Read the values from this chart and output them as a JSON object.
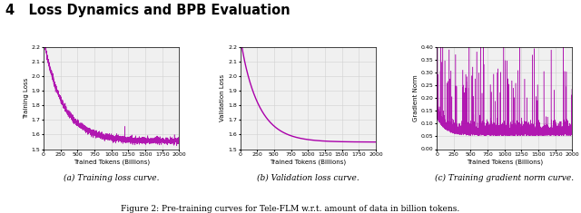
{
  "title_text": "4   Loss Dynamics and BPB Evaluation",
  "caption_bold": "Figure 2:",
  "caption_rest": " Pre-training curves for Tele-FLM w.r.t. amount of data in billion tokens.",
  "subfig_labels": [
    "(a) Training loss curve.",
    "(b) Validation loss curve.",
    "(c) Training gradient norm curve."
  ],
  "color": "#AA00AA",
  "xlim": [
    0,
    2000
  ],
  "xticks": [
    0,
    250,
    500,
    750,
    1000,
    1250,
    1500,
    1750,
    2000
  ],
  "xlabel": "Trained Tokens (Billions)",
  "plot_a": {
    "ylabel": "Training Loss",
    "ylim": [
      1.5,
      2.2
    ],
    "yticks": [
      1.5,
      1.6,
      1.7,
      1.8,
      1.9,
      2.0,
      2.1,
      2.2
    ]
  },
  "plot_b": {
    "ylabel": "Validation Loss",
    "ylim": [
      1.5,
      2.2
    ],
    "yticks": [
      1.5,
      1.6,
      1.7,
      1.8,
      1.9,
      2.0,
      2.1,
      2.2
    ]
  },
  "plot_c": {
    "ylabel": "Gradient Norm",
    "ylim": [
      0.0,
      0.4
    ],
    "yticks": [
      0.0,
      0.05,
      0.1,
      0.15,
      0.2,
      0.25,
      0.3,
      0.35,
      0.4
    ]
  },
  "grid_color": "#d0d0d0",
  "plot_bg": "#f0f0f0"
}
